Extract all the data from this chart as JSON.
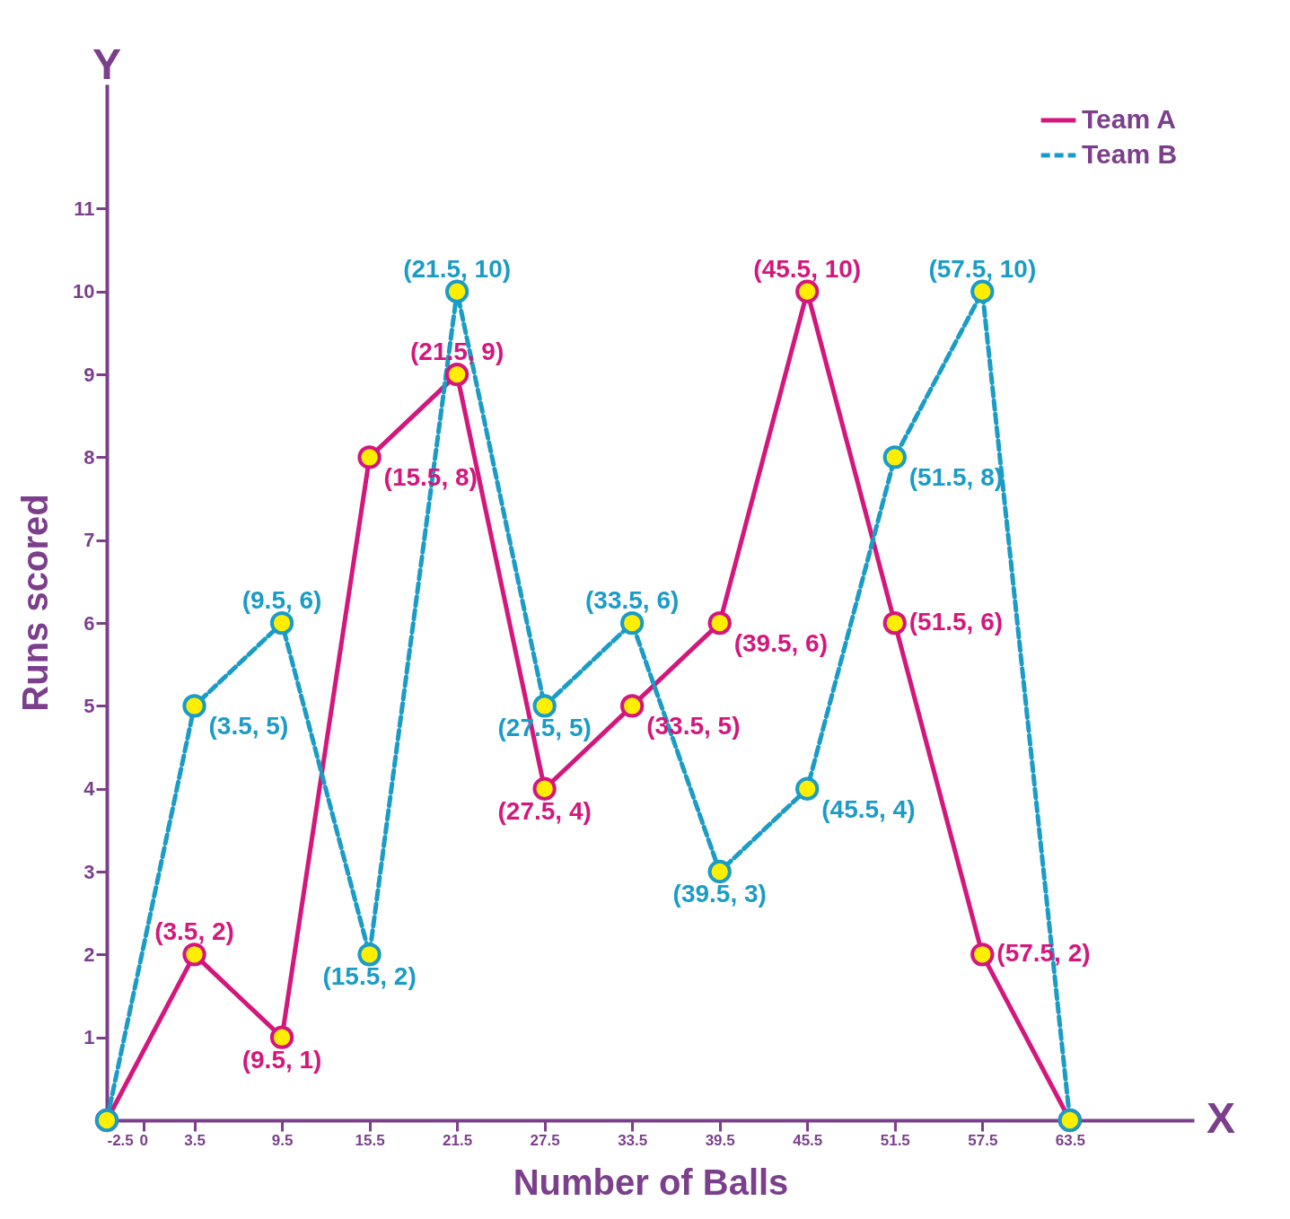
{
  "chart_data": {
    "type": "line",
    "xlabel": "Number of Balls",
    "ylabel": "Runs scored",
    "x": [
      -2.5,
      3.5,
      9.5,
      15.5,
      21.5,
      27.5,
      33.5,
      39.5,
      45.5,
      51.5,
      57.5,
      63.5
    ],
    "series": [
      {
        "name": "Team A",
        "color": "#d4177c",
        "line_style": "solid",
        "values": [
          0,
          2,
          1,
          8,
          9,
          4,
          5,
          6,
          10,
          6,
          2,
          0
        ],
        "value_labels": [
          null,
          "(3.5, 2)",
          "(9.5, 1)",
          "(15.5, 8)",
          "(21.5, 9)",
          "(27.5, 4)",
          "(33.5, 5)",
          "(39.5, 6)",
          "(45.5, 10)",
          "(51.5, 6)",
          "(57.5, 2)",
          null
        ]
      },
      {
        "name": "Team B",
        "color": "#1a9cc6",
        "line_style": "dashed",
        "values": [
          0,
          5,
          6,
          2,
          10,
          5,
          6,
          3,
          4,
          8,
          10,
          0
        ],
        "value_labels": [
          null,
          "(3.5, 5)",
          "(9.5, 6)",
          "(15.5, 2)",
          "(21.5, 10)",
          "(27.5, 5)",
          "(33.5, 6)",
          "(39.5, 3)",
          "(45.5, 4)",
          "(51.5, 8)",
          "(57.5, 10)",
          null
        ]
      }
    ],
    "annotations": [
      "Y",
      "X"
    ],
    "xlim": [
      -2.5,
      72
    ],
    "ylim": [
      0,
      12.5
    ],
    "xticks": [
      -2.5,
      0,
      3.5,
      9.5,
      15.5,
      21.5,
      27.5,
      33.5,
      39.5,
      45.5,
      51.5,
      57.5,
      63.5
    ],
    "yticks": [
      1,
      2,
      3,
      4,
      5,
      6,
      7,
      8,
      9,
      10,
      11
    ],
    "marker": "circle",
    "legend": "top right",
    "grid": false
  }
}
